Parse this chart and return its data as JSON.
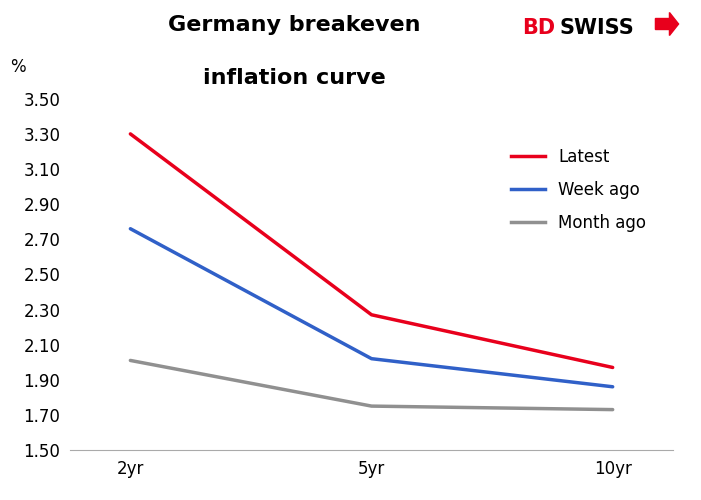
{
  "title_line1": "Germany breakeven",
  "title_line2": "inflation curve",
  "x_labels": [
    "2yr",
    "5yr",
    "10yr"
  ],
  "x_positions": [
    0,
    1,
    2
  ],
  "series": {
    "Latest": {
      "values": [
        3.3,
        2.27,
        1.97
      ],
      "color": "#e8001c",
      "linewidth": 2.5
    },
    "Week ago": {
      "values": [
        2.76,
        2.02,
        1.86
      ],
      "color": "#3060c8",
      "linewidth": 2.5
    },
    "Month ago": {
      "values": [
        2.01,
        1.75,
        1.73
      ],
      "color": "#909090",
      "linewidth": 2.5
    }
  },
  "ylim": [
    1.5,
    3.55
  ],
  "yticks": [
    1.5,
    1.7,
    1.9,
    2.1,
    2.3,
    2.5,
    2.7,
    2.9,
    3.1,
    3.3,
    3.5
  ],
  "ylabel_text": "%",
  "background_color": "#ffffff",
  "plot_bg_color": "#ffffff",
  "legend_order": [
    "Latest",
    "Week ago",
    "Month ago"
  ],
  "bdswiss_bd": "BD",
  "bdswiss_swiss": "SWISS",
  "bdswiss_color_bd": "#e8001c",
  "bdswiss_color_swiss": "#000000",
  "title_fontsize": 16,
  "axis_fontsize": 12,
  "legend_fontsize": 12
}
